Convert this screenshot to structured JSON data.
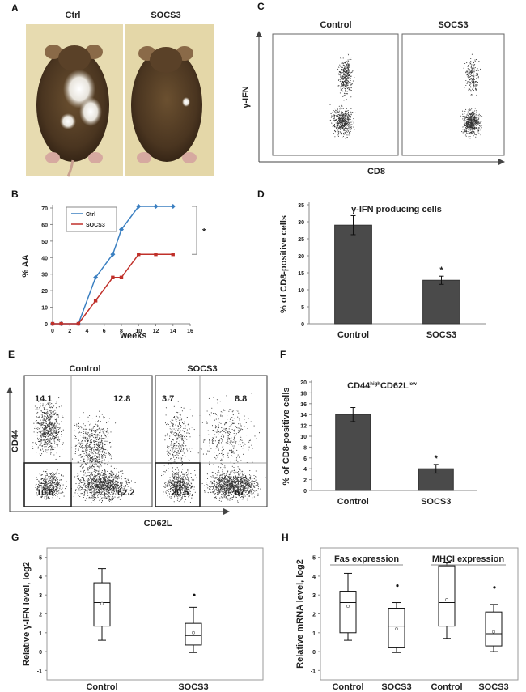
{
  "panels": {
    "A": {
      "letter": "A",
      "left_label": "Ctrl",
      "right_label": "SOCS3"
    },
    "B": {
      "letter": "B"
    },
    "C": {
      "letter": "C",
      "left_title": "Control",
      "right_title": "SOCS3",
      "ylabel": "γ-IFN",
      "xlabel": "CD8"
    },
    "D": {
      "letter": "D"
    },
    "E": {
      "letter": "E",
      "left_title": "Control",
      "right_title": "SOCS3",
      "ylabel": "CD44",
      "xlabel": "CD62L",
      "left_quadrants": {
        "ul": "14.1",
        "ur": "12.8",
        "ll": "10.6",
        "lr": "62.2"
      },
      "right_quadrants": {
        "ul": "3.7",
        "ur": "8.8",
        "ll": "20.5",
        "lr": "67"
      }
    },
    "F": {
      "letter": "F"
    },
    "G": {
      "letter": "G"
    },
    "H": {
      "letter": "H"
    }
  },
  "colors": {
    "ctrl_line": "#3a7fc1",
    "socs3_line": "#c0302a",
    "bar_fill": "#4a4a4a",
    "mouse_bg": "#e4d7a8"
  },
  "chart_data": [
    {
      "id": "B",
      "type": "line",
      "title": "",
      "xlabel": "weeks",
      "ylabel": "% AA",
      "xlim": [
        0,
        16
      ],
      "ylim": [
        0,
        70
      ],
      "xticks": [
        0,
        2,
        4,
        6,
        8,
        10,
        12,
        14,
        16
      ],
      "yticks": [
        0,
        10,
        20,
        30,
        40,
        50,
        60,
        70
      ],
      "series": [
        {
          "name": "Ctrl",
          "x": [
            0,
            1,
            3,
            5,
            7,
            8,
            10,
            12,
            14
          ],
          "y": [
            0,
            0,
            0,
            28,
            42,
            57,
            71,
            71,
            71
          ]
        },
        {
          "name": "SOCS3",
          "x": [
            0,
            1,
            3,
            5,
            7,
            8,
            10,
            12,
            14
          ],
          "y": [
            0,
            0,
            0,
            14,
            28,
            28,
            42,
            42,
            42
          ]
        }
      ],
      "annotations": [
        "*"
      ]
    },
    {
      "id": "D",
      "type": "bar",
      "title": "γ-IFN producing cells",
      "xlabel": "",
      "ylabel": "% of CD8-positive cells",
      "ylim": [
        0,
        35
      ],
      "yticks": [
        0,
        5,
        10,
        15,
        20,
        25,
        30,
        35
      ],
      "categories": [
        "Control",
        "SOCS3"
      ],
      "values": [
        29,
        12.8
      ],
      "errors": [
        2.8,
        1.2
      ],
      "annotations": [
        "*"
      ]
    },
    {
      "id": "F",
      "type": "bar",
      "title_main": "CD44",
      "title_sup1": "high",
      "title_mid": "CD62L",
      "title_sup2": "low",
      "xlabel": "",
      "ylabel": "% of CD8-positive cells",
      "ylim": [
        0,
        20
      ],
      "yticks": [
        0,
        2,
        4,
        6,
        8,
        10,
        12,
        14,
        16,
        18,
        20
      ],
      "categories": [
        "Control",
        "SOCS3"
      ],
      "values": [
        14,
        4
      ],
      "errors": [
        1.3,
        0.8
      ],
      "annotations": [
        "*"
      ]
    },
    {
      "id": "G",
      "type": "box",
      "ylabel": "Relative γ-IFN level, log2",
      "ylim": [
        -1.5,
        5.5
      ],
      "yticks": [
        -1,
        0,
        1,
        2,
        3,
        4,
        5
      ],
      "categories": [
        "Control",
        "SOCS3"
      ],
      "boxes": [
        {
          "min": 0.6,
          "q1": 1.35,
          "median": 2.6,
          "q3": 3.65,
          "max": 4.4,
          "mean": 2.55,
          "outliers": []
        },
        {
          "min": -0.05,
          "q1": 0.35,
          "median": 0.85,
          "q3": 1.5,
          "max": 2.35,
          "mean": 1.0,
          "outliers": [
            3.0
          ]
        }
      ]
    },
    {
      "id": "H",
      "type": "box",
      "ylabel": "Relative mRNA level, log2",
      "ylim": [
        -1.5,
        5.5
      ],
      "yticks": [
        -1,
        0,
        1,
        2,
        3,
        4,
        5
      ],
      "group_labels": [
        "Fas expression",
        "MHCI expression"
      ],
      "categories": [
        "Control",
        "SOCS3",
        "Control",
        "SOCS3"
      ],
      "boxes": [
        {
          "min": 0.6,
          "q1": 1.0,
          "median": 2.6,
          "q3": 3.2,
          "max": 4.15,
          "mean": 2.4,
          "outliers": []
        },
        {
          "min": -0.05,
          "q1": 0.2,
          "median": 1.35,
          "q3": 2.3,
          "max": 2.6,
          "mean": 1.2,
          "outliers": [
            3.5
          ]
        },
        {
          "min": 0.7,
          "q1": 1.35,
          "median": 2.6,
          "q3": 4.55,
          "max": 4.75,
          "mean": 2.75,
          "outliers": []
        },
        {
          "min": 0.0,
          "q1": 0.3,
          "median": 0.95,
          "q3": 2.1,
          "max": 2.5,
          "mean": 1.05,
          "outliers": [
            3.4
          ]
        }
      ]
    }
  ]
}
